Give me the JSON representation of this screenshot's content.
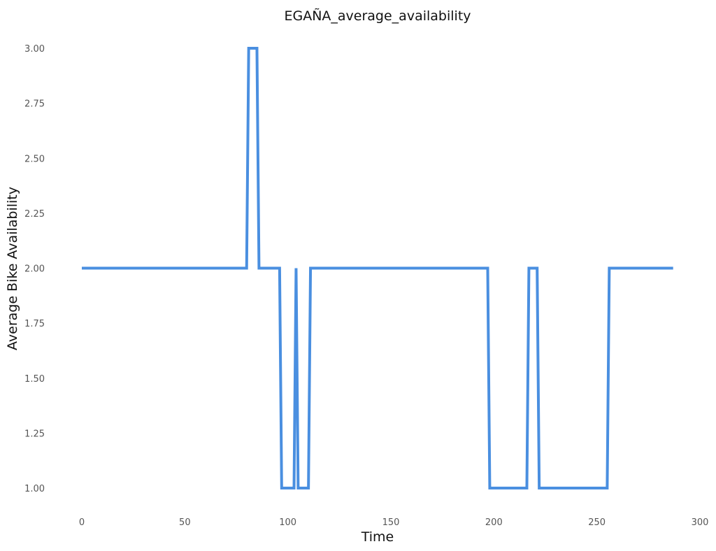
{
  "chart_data": {
    "type": "line",
    "title": "EGAÑA_average_availability",
    "xlabel": "Time",
    "ylabel": "Average Bike Availability",
    "xlim": [
      -5,
      300
    ],
    "ylim": [
      0.9,
      3.06
    ],
    "xticks": [
      0,
      50,
      100,
      150,
      200,
      250,
      300
    ],
    "yticks": [
      1.0,
      1.25,
      1.5,
      1.75,
      2.0,
      2.25,
      2.5,
      2.75,
      3.0
    ],
    "xtick_labels": [
      "0",
      "50",
      "100",
      "150",
      "200",
      "250",
      "300"
    ],
    "ytick_labels": [
      "1.00",
      "1.25",
      "1.50",
      "1.75",
      "2.00",
      "2.25",
      "2.50",
      "2.75",
      "3.00"
    ],
    "grid": false,
    "series": [
      {
        "color": "#4a8fe0",
        "x": [
          0,
          80,
          81,
          85,
          86,
          96,
          97,
          103,
          104,
          105,
          110,
          111,
          197,
          198,
          216,
          217,
          221,
          222,
          255,
          256,
          287
        ],
        "y": [
          2,
          2,
          3,
          3,
          2,
          2,
          1,
          1,
          2,
          1,
          1,
          2,
          2,
          1,
          1,
          2,
          2,
          1,
          1,
          2,
          2
        ]
      }
    ]
  }
}
